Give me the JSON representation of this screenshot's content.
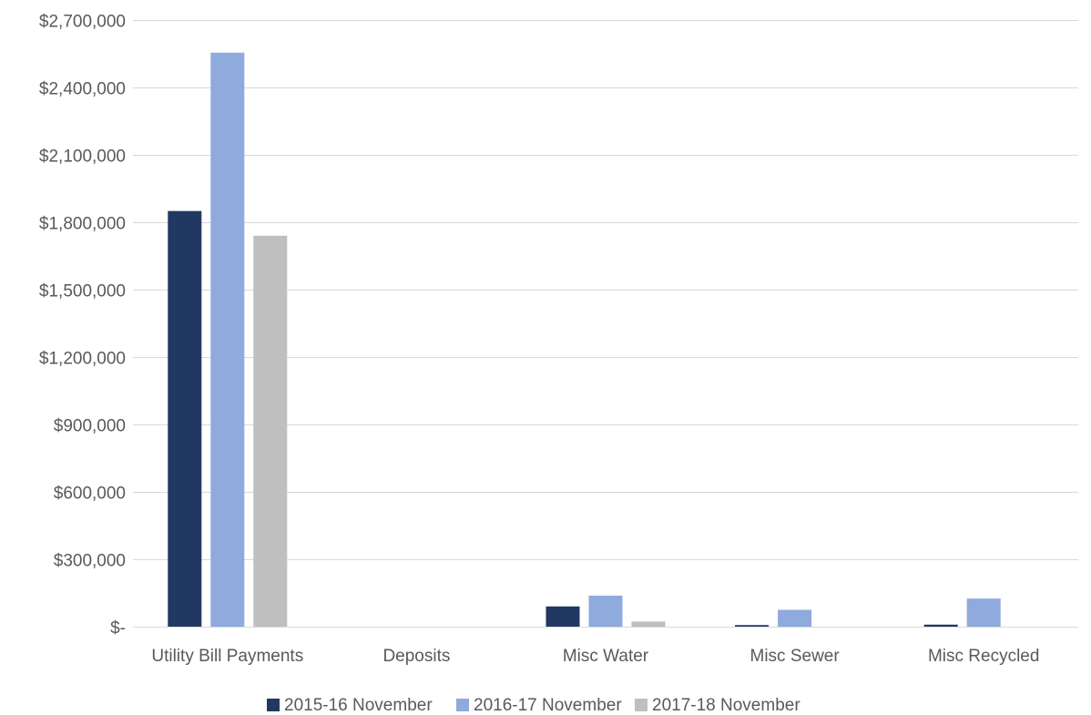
{
  "chart_data": {
    "type": "bar",
    "title": "",
    "xlabel": "",
    "ylabel": "",
    "categories": [
      "Utility Bill Payments",
      "Deposits",
      "Misc Water",
      "Misc Sewer",
      "Misc Recycled"
    ],
    "series": [
      {
        "name": "2015-16 November",
        "color": "#213862",
        "values": [
          1850000,
          0,
          90000,
          7000,
          9000
        ]
      },
      {
        "name": "2016-17 November",
        "color": "#8faadc",
        "values": [
          2555000,
          0,
          138000,
          75000,
          125000
        ]
      },
      {
        "name": "2017-18 November",
        "color": "#bfbfbf",
        "values": [
          1740000,
          0,
          23000,
          0,
          0
        ]
      }
    ],
    "ylim": [
      0,
      2700000
    ],
    "yticks": [
      0,
      300000,
      600000,
      900000,
      1200000,
      1500000,
      1800000,
      2100000,
      2400000,
      2700000
    ],
    "ytick_labels": [
      "$-",
      "$300,000",
      "$600,000",
      "$900,000",
      "$1,200,000",
      "$1,500,000",
      "$1,800,000",
      "$2,100,000",
      "$2,400,000",
      "$2,700,000"
    ],
    "grid": true,
    "legend_position": "bottom"
  }
}
